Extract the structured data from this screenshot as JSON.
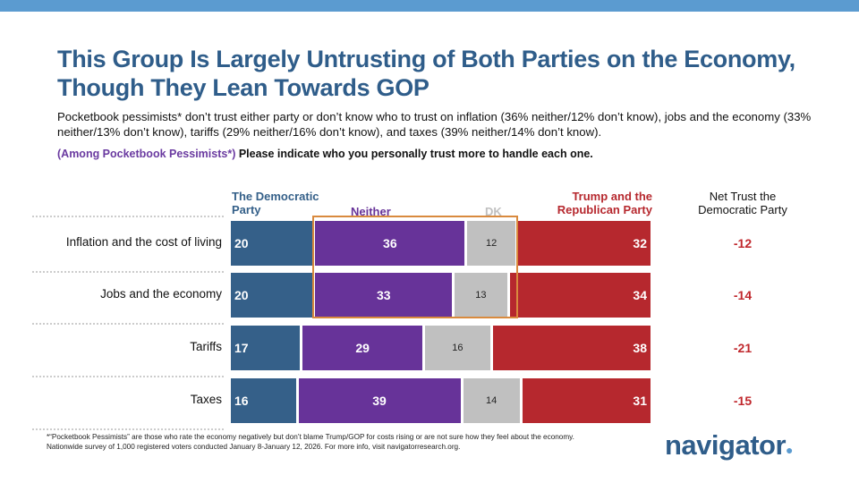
{
  "title": "This Group Is Largely Untrusting of Both Parties on the Economy, Though They Lean Towards GOP",
  "subtitle": "Pocketbook pessimists* don’t trust either party or don’t know who to trust on inflation (36% neither/12% don’t know), jobs and the economy (33% neither/13% don’t know), tariffs (29% neither/16% don’t know), and taxes (39% neither/14% don’t know).",
  "question_audience": "(Among Pocketbook Pessimists*)",
  "question_text": " Please indicate who you personally trust more to handle each one.",
  "chart_data": {
    "type": "bar",
    "stacked": true,
    "orientation": "horizontal",
    "categories": [
      "Inflation and the cost of living",
      "Jobs and the economy",
      "Tariffs",
      "Taxes"
    ],
    "series": [
      {
        "name": "The Democratic Party",
        "color": "#356089",
        "values": [
          20,
          20,
          17,
          16
        ]
      },
      {
        "name": "Neither",
        "color": "#673399",
        "values": [
          36,
          33,
          29,
          39
        ]
      },
      {
        "name": "DK",
        "color": "#c0c0c0",
        "values": [
          12,
          13,
          16,
          14
        ]
      },
      {
        "name": "Trump and the Republican Party",
        "color": "#b6282e",
        "values": [
          32,
          34,
          38,
          31
        ]
      }
    ],
    "net_header": "Net Trust the Democratic Party",
    "net_values": [
      "-12",
      "-14",
      "-21",
      "-15"
    ],
    "highlight": "Neither and DK for first two rows outlined in orange"
  },
  "footnotes": [
    "*“Pocketbook Pessimists” are those who rate the economy negatively but don’t blame Trump/GOP for costs rising or are not sure how they feel about the economy.",
    "Nationwide survey of 1,000 registered voters conducted January 8-January 12, 2026. For more info, visit navigatorresearch.org."
  ],
  "logo": "navigator"
}
